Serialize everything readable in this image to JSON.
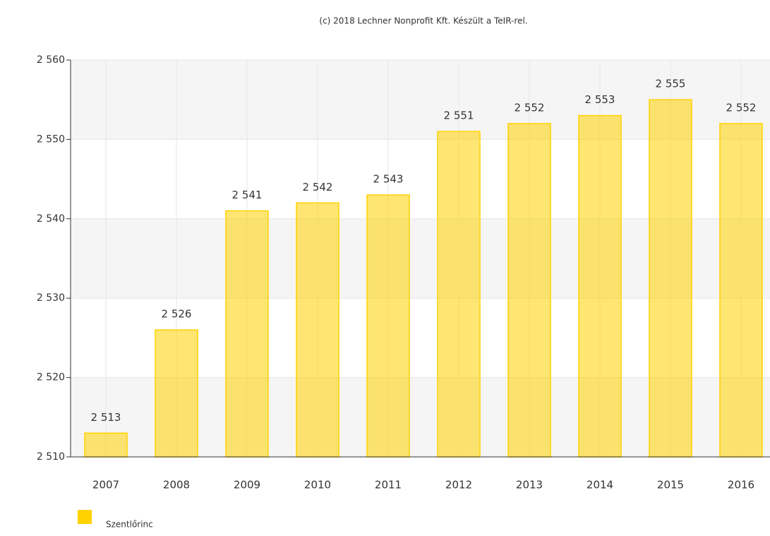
{
  "chart_data": {
    "type": "bar",
    "credit": "(c) 2018 Lechner Nonprofit Kft. Készült a TeIR-rel.",
    "categories": [
      "2007",
      "2008",
      "2009",
      "2010",
      "2011",
      "2012",
      "2013",
      "2014",
      "2015",
      "2016"
    ],
    "series": [
      {
        "name": "Szentlőrinc",
        "color": "#ffd200",
        "values": [
          2513,
          2526,
          2541,
          2542,
          2543,
          2551,
          2552,
          2553,
          2555,
          2552
        ],
        "value_labels": [
          "2 513",
          "2 526",
          "2 541",
          "2 542",
          "2 543",
          "2 551",
          "2 552",
          "2 553",
          "2 555",
          "2 552"
        ]
      }
    ],
    "ylim": [
      2510,
      2560
    ],
    "yticks": [
      {
        "value": 2510,
        "label": "2 510"
      },
      {
        "value": 2520,
        "label": "2 520"
      },
      {
        "value": 2530,
        "label": "2 530"
      },
      {
        "value": 2540,
        "label": "2 540"
      },
      {
        "value": 2550,
        "label": "2 550"
      },
      {
        "value": 2560,
        "label": "2 560"
      }
    ],
    "grid": true
  }
}
